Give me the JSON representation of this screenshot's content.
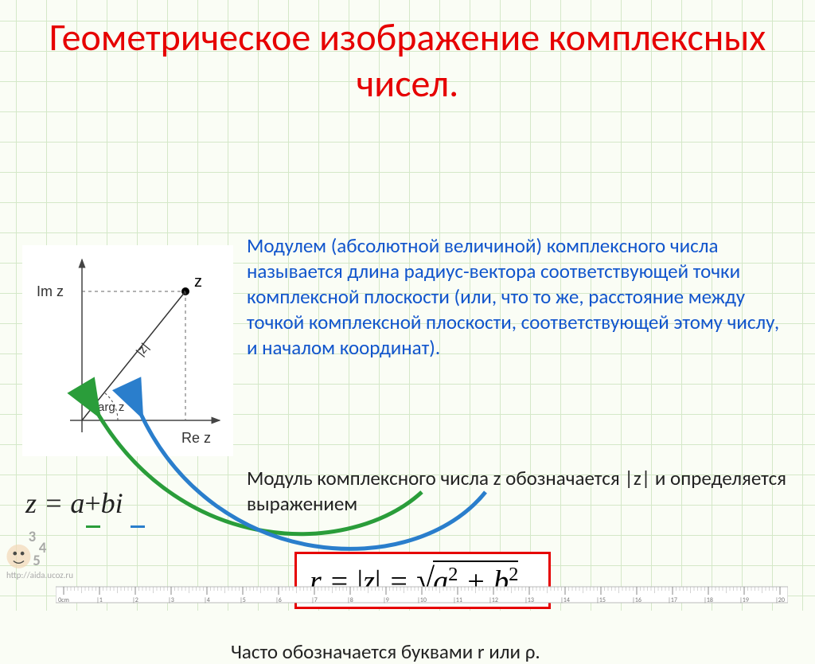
{
  "title": "Геометрическое изображение комплексных чисел.",
  "paragraph1": "Модулем (абсолютной величиной) комплексного числа называется длина радиус-вектора соответствующей точки комплексной плоскости (или, что то же, расстояние между точкой комплексной плоскости, соответствующей этому числу, и началом координат).",
  "paragraph2": "Модуль комплексного числа z обозначается |z| и определяется выражением",
  "formula_z": {
    "lhs": "z",
    "eq": " = ",
    "a": "a",
    "plus": "+",
    "b": "b",
    "i": "i"
  },
  "diagram": {
    "y_label": "Im z",
    "x_label": "Re z",
    "point_label": "z",
    "radius_label": "|z|",
    "angle_label": "arg z"
  },
  "modulus_formula": {
    "r": "r",
    "eq1": " = ",
    "abs_open": "|",
    "z": "z",
    "abs_close": "|",
    "eq2": " = ",
    "a": "a",
    "b": "b",
    "plus": " + ",
    "dot": "."
  },
  "bottom_text": "Часто обозначается буквами r или ρ.",
  "watermark": "http://aida.ucoz.ru",
  "colors": {
    "title": "#e60000",
    "definition_text": "#1155cc",
    "body_text": "#222222",
    "formula_border": "#e60000",
    "grid": "#d4e8c8",
    "background": "#fafdf5",
    "arrow_green": "#2a9d3a",
    "arrow_blue": "#2a7ecc"
  },
  "ruler": {
    "start": 0,
    "end": 20,
    "step": 1,
    "unit_label": "0cm"
  }
}
